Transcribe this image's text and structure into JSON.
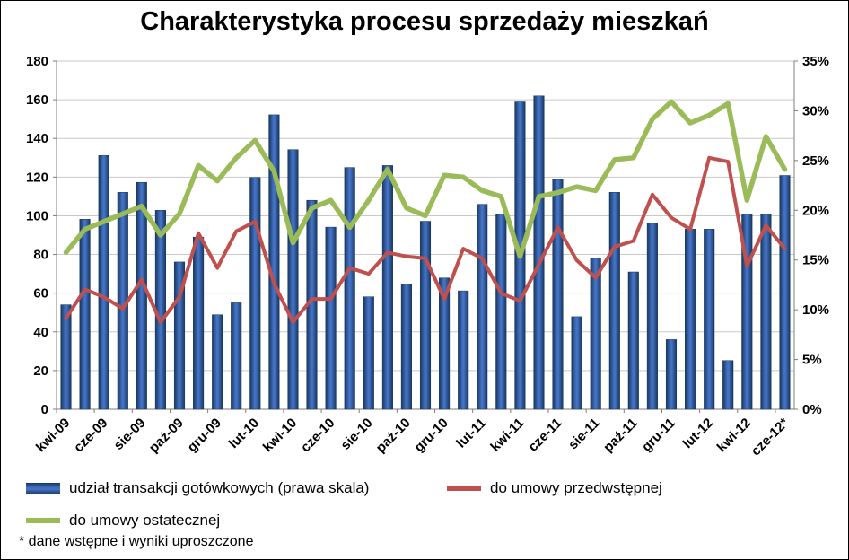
{
  "frame": {
    "background": "#FFFFFF",
    "border_color": "#000000"
  },
  "chart_data": {
    "type": "combo-bar-line",
    "title": "Charakterystyka procesu sprzedaży mieszkań",
    "footnote": "* dane wstępne i wyniki uproszczone",
    "n_points": 39,
    "x_tick_every": 2,
    "x_tick_labels": [
      "kwi-09",
      "cze-09",
      "sie-09",
      "paź-09",
      "gru-09",
      "lut-10",
      "kwi-10",
      "cze-10",
      "sie-10",
      "paź-10",
      "gru-10",
      "lut-11",
      "kwi-11",
      "cze-11",
      "sie-11",
      "paź-11",
      "gru-11",
      "lut-12",
      "kwi-12",
      "cze-12*"
    ],
    "axes": {
      "left": {
        "min": 0,
        "max": 180,
        "step": 20,
        "ticks": [
          "0",
          "20",
          "40",
          "60",
          "80",
          "100",
          "120",
          "140",
          "160",
          "180"
        ]
      },
      "right": {
        "min": 0,
        "max": 35,
        "step": 5,
        "ticks": [
          "0%",
          "5%",
          "10%",
          "15%",
          "20%",
          "25%",
          "30%",
          "35%"
        ]
      }
    },
    "style": {
      "grid_color": "#C9C9C9",
      "axis_color": "#7F7F7F",
      "bar_color": "#17375E",
      "bar_highlight": "#4472C4",
      "red_line_color": "#C0504D",
      "green_line_color": "#9BBB59"
    },
    "series": [
      {
        "name": "udział transakcji gotówkowych (prawa skala)",
        "type": "bar",
        "axis": "right",
        "color": "#17375E",
        "values": [
          10.5,
          19.1,
          25.5,
          21.8,
          22.8,
          20.0,
          14.8,
          17.3,
          9.5,
          10.7,
          23.3,
          29.6,
          26.1,
          21.0,
          18.3,
          24.3,
          11.3,
          24.5,
          12.6,
          18.9,
          13.2,
          11.9,
          20.6,
          19.6,
          30.9,
          31.5,
          23.1,
          9.3,
          15.2,
          21.8,
          13.8,
          18.7,
          7.0,
          18.1,
          18.1,
          4.9,
          19.6,
          19.6,
          23.5
        ]
      },
      {
        "name": "do umowy przedwstępnej",
        "type": "line",
        "axis": "left",
        "color": "#C0504D",
        "values": [
          47,
          62,
          58,
          52,
          67,
          45,
          58,
          91,
          73,
          92,
          97,
          65,
          45,
          57,
          57,
          73,
          70,
          81,
          79,
          78,
          57,
          83,
          78,
          60,
          56,
          75,
          94,
          77,
          68,
          84,
          87,
          111,
          99,
          93,
          130,
          128,
          74,
          95,
          83
        ]
      },
      {
        "name": "do umowy ostatecznej",
        "type": "line",
        "axis": "left",
        "color": "#9BBB59",
        "values": [
          81,
          93,
          97,
          101,
          105,
          90,
          101,
          126,
          118,
          130,
          139,
          123,
          86,
          104,
          108,
          94,
          108,
          124,
          104,
          100,
          121,
          120,
          113,
          110,
          79,
          110,
          112,
          115,
          113,
          129,
          130,
          150,
          159,
          148,
          152,
          158,
          108,
          141,
          124
        ]
      }
    ]
  }
}
